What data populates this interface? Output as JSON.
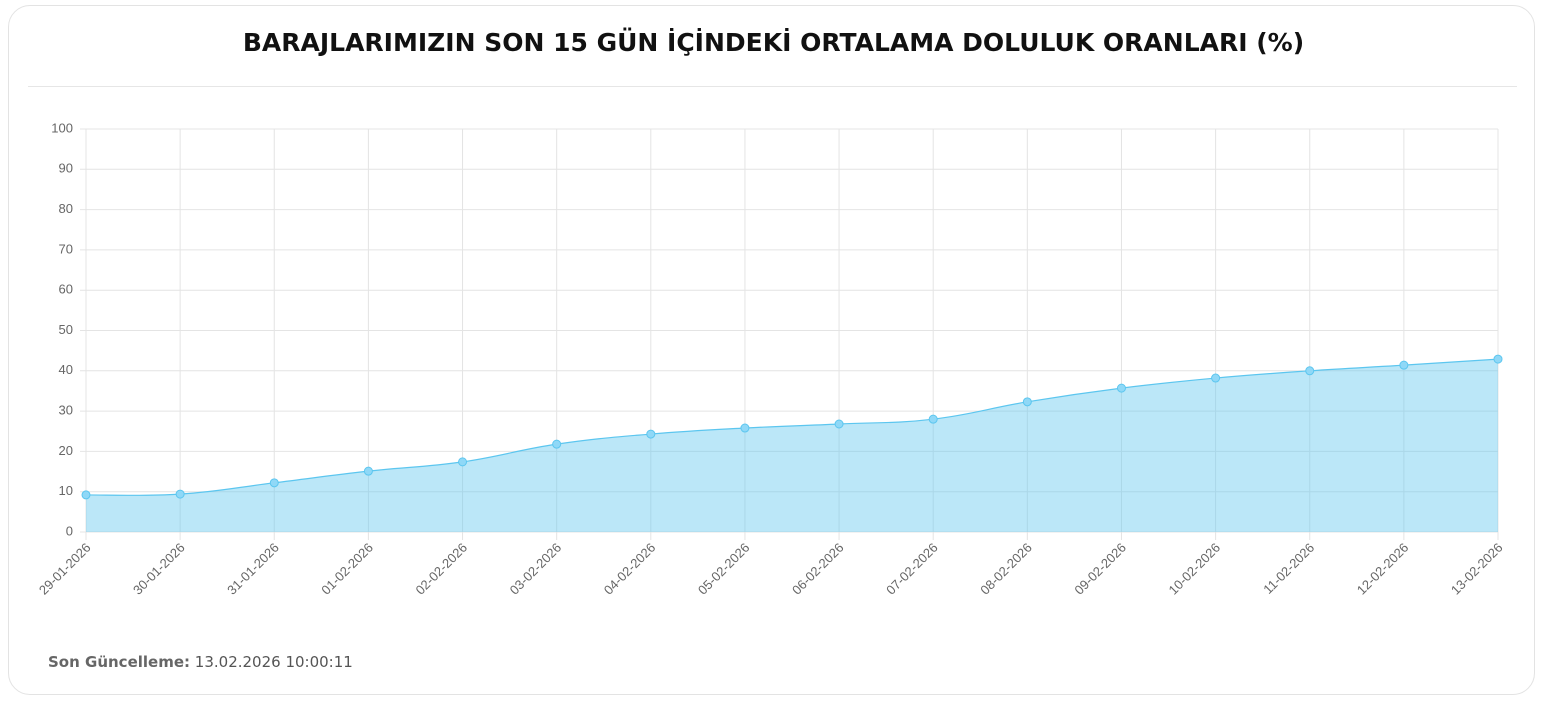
{
  "chart_data": {
    "type": "area",
    "title": "BARAJLARIMIZIN SON 15 GÜN İÇİNDEKİ ORTALAMA DOLULUK ORANLARI (%)",
    "categories": [
      "29-01-2026",
      "30-01-2026",
      "31-01-2026",
      "01-02-2026",
      "02-02-2026",
      "03-02-2026",
      "04-02-2026",
      "05-02-2026",
      "06-02-2026",
      "07-02-2026",
      "08-02-2026",
      "09-02-2026",
      "10-02-2026",
      "11-02-2026",
      "12-02-2026",
      "13-02-2026"
    ],
    "values": [
      9.2,
      9.4,
      12.2,
      15.1,
      17.4,
      21.8,
      24.3,
      25.8,
      26.8,
      28.0,
      32.3,
      35.7,
      38.2,
      40.0,
      41.4,
      42.9
    ],
    "color": "#5cc6ef",
    "ylim": [
      0,
      100
    ],
    "yticks": [
      0,
      10,
      20,
      30,
      40,
      50,
      60,
      70,
      80,
      90,
      100
    ],
    "grid": true
  },
  "footer": {
    "label": "Son Güncelleme:",
    "value": "13.02.2026 10:00:11"
  }
}
